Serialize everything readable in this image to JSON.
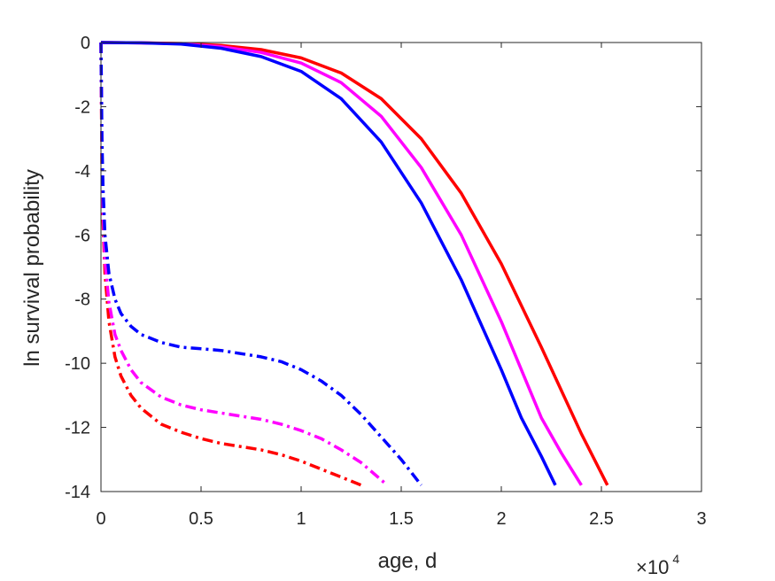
{
  "chart_data": {
    "type": "line",
    "title": "",
    "xlabel": "age, d",
    "ylabel": "ln survival probability",
    "x_multiplier": {
      "base": "×10",
      "exponent": "4"
    },
    "xlim": [
      0,
      30000
    ],
    "ylim": [
      -14,
      0
    ],
    "xticks": [
      0,
      5000,
      10000,
      15000,
      20000,
      25000,
      30000
    ],
    "xtick_labels": [
      "0",
      "0.5",
      "1",
      "1.5",
      "2",
      "2.5",
      "3"
    ],
    "yticks": [
      0,
      -2,
      -4,
      -6,
      -8,
      -10,
      -12,
      -14
    ],
    "ytick_labels": [
      "0",
      "-2",
      "-4",
      "-6",
      "-8",
      "-10",
      "-12",
      "-14"
    ],
    "grid": false,
    "legend": false,
    "series": [
      {
        "color": "#ff0000",
        "style": "solid",
        "x": [
          0,
          2000,
          4000,
          6000,
          8000,
          10000,
          12000,
          14000,
          16000,
          18000,
          20000,
          22000,
          24000,
          25300
        ],
        "y": [
          0,
          -0.01,
          -0.03,
          -0.09,
          -0.22,
          -0.48,
          -0.95,
          -1.75,
          -3.0,
          -4.7,
          -6.9,
          -9.5,
          -12.2,
          -13.8
        ]
      },
      {
        "color": "#ff00ff",
        "style": "solid",
        "x": [
          0,
          2000,
          4000,
          6000,
          8000,
          10000,
          12000,
          14000,
          16000,
          18000,
          20000,
          22000,
          23000,
          24000
        ],
        "y": [
          0,
          -0.01,
          -0.04,
          -0.13,
          -0.31,
          -0.64,
          -1.25,
          -2.3,
          -3.9,
          -6.0,
          -8.7,
          -11.7,
          -12.8,
          -13.8
        ]
      },
      {
        "color": "#0000ff",
        "style": "solid",
        "x": [
          0,
          2000,
          4000,
          6000,
          8000,
          10000,
          12000,
          14000,
          16000,
          18000,
          20000,
          21000,
          22000,
          22700
        ],
        "y": [
          0,
          -0.01,
          -0.05,
          -0.18,
          -0.44,
          -0.9,
          -1.75,
          -3.1,
          -5.0,
          -7.4,
          -10.2,
          -11.7,
          -12.9,
          -13.8
        ]
      },
      {
        "color": "#ff0000",
        "style": "dashdot",
        "x": [
          0,
          50,
          100,
          200,
          400,
          700,
          1000,
          1500,
          2000,
          3000,
          4000,
          5000,
          6000,
          7000,
          8000,
          9000,
          10000,
          11000,
          12000,
          13000
        ],
        "y": [
          0,
          -4.0,
          -5.6,
          -7.2,
          -8.7,
          -9.8,
          -10.4,
          -11.0,
          -11.4,
          -11.9,
          -12.15,
          -12.35,
          -12.5,
          -12.6,
          -12.7,
          -12.85,
          -13.05,
          -13.3,
          -13.55,
          -13.8
        ]
      },
      {
        "color": "#ff00ff",
        "style": "dashdot",
        "x": [
          0,
          50,
          100,
          200,
          400,
          700,
          1000,
          1500,
          2000,
          3000,
          4000,
          5000,
          6000,
          7000,
          8000,
          9000,
          10000,
          11000,
          12000,
          13000,
          14300
        ],
        "y": [
          0,
          -3.5,
          -5.1,
          -6.8,
          -8.1,
          -9.1,
          -9.6,
          -10.2,
          -10.6,
          -11.05,
          -11.3,
          -11.45,
          -11.55,
          -11.65,
          -11.75,
          -11.9,
          -12.1,
          -12.35,
          -12.7,
          -13.1,
          -13.8
        ]
      },
      {
        "color": "#0000ff",
        "style": "dashdot",
        "x": [
          0,
          50,
          100,
          200,
          400,
          700,
          1000,
          1500,
          2000,
          3000,
          4000,
          5000,
          6000,
          7000,
          8000,
          9000,
          10000,
          11000,
          12000,
          13000,
          14000,
          15000,
          16000
        ],
        "y": [
          0,
          -3.0,
          -4.5,
          -6.0,
          -7.2,
          -8.0,
          -8.45,
          -8.85,
          -9.1,
          -9.35,
          -9.5,
          -9.55,
          -9.6,
          -9.7,
          -9.8,
          -9.95,
          -10.2,
          -10.55,
          -11.0,
          -11.6,
          -12.3,
          -13.0,
          -13.8
        ]
      }
    ]
  }
}
